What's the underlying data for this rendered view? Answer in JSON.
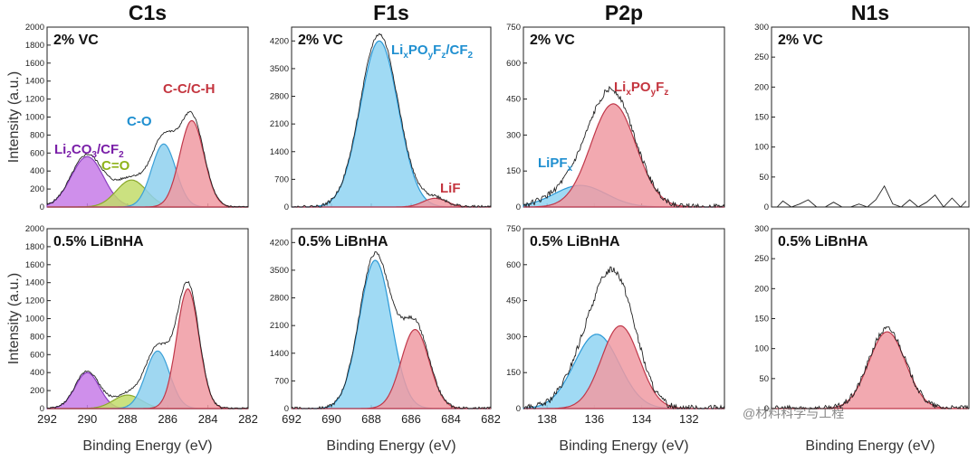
{
  "colors": {
    "carbonate": "#c77be8",
    "carbonate_line": "#8a3fc0",
    "co_double": "#c2dc6a",
    "co_double_line": "#8aa82a",
    "co_single": "#8ed0ef",
    "co_single_line": "#3aa0d8",
    "cc": "#f09aa2",
    "cc_line": "#c0384a",
    "lipoyfz": "#f09aa2",
    "lipf_lif": "#f09aa2",
    "blue": "#8fd3f2",
    "blue_line": "#2a98d6",
    "envelope": "#222222",
    "label_purple": "#7a1fa8",
    "label_green": "#8fb31b",
    "label_blue": "#1f8fd0",
    "label_red": "#c4353f"
  },
  "watermark": "@材料科学与工程",
  "chart_data": [
    {
      "type": "area",
      "panel": "C1s-top",
      "title": "C1s",
      "condition": "2% VC",
      "ylabel": "Intensity (a.u.)",
      "xlabel": "",
      "xlim": [
        292,
        282
      ],
      "xticks": [
        292,
        290,
        288,
        286,
        284,
        282
      ],
      "ylim": [
        0,
        2000
      ],
      "yticks": [
        0,
        200,
        400,
        600,
        800,
        1000,
        1200,
        1400,
        1600,
        1800,
        2000
      ],
      "envelope_noise": 12,
      "peaks": [
        {
          "name": "Li2CO3/CF2",
          "center": 290.0,
          "amp": 560,
          "sigma": 0.8,
          "fill": "carbonate",
          "line": "carbonate_line"
        },
        {
          "name": "C=O",
          "center": 287.8,
          "amp": 300,
          "sigma": 0.75,
          "fill": "co_double",
          "line": "co_double_line"
        },
        {
          "name": "C-O",
          "center": 286.2,
          "amp": 700,
          "sigma": 0.6,
          "fill": "co_single",
          "line": "co_single_line"
        },
        {
          "name": "C-C/C-H",
          "center": 284.8,
          "amp": 960,
          "sigma": 0.6,
          "fill": "cc",
          "line": "cc_line"
        }
      ]
    },
    {
      "type": "area",
      "panel": "F1s-top",
      "title": "F1s",
      "condition": "2% VC",
      "ylabel": "",
      "xlabel": "",
      "xlim": [
        692,
        682
      ],
      "xticks": [
        692,
        690,
        688,
        686,
        684,
        682
      ],
      "ylim": [
        0,
        4550
      ],
      "yticks": [
        0,
        700,
        1400,
        2100,
        2800,
        3500,
        4200
      ],
      "envelope_noise": 40,
      "peaks": [
        {
          "name": "LixPOyFz/CF2",
          "center": 687.6,
          "amp": 4200,
          "sigma": 0.95,
          "fill": "blue",
          "line": "blue_line"
        },
        {
          "name": "LiF",
          "center": 684.8,
          "amp": 220,
          "sigma": 0.6,
          "fill": "lipf_lif",
          "line": "cc_line"
        }
      ]
    },
    {
      "type": "area",
      "panel": "P2p-top",
      "title": "P2p",
      "condition": "2% VC",
      "ylabel": "",
      "xlabel": "",
      "xlim": [
        139,
        130.5
      ],
      "xticks": [
        138,
        136,
        134,
        132
      ],
      "ylim": [
        0,
        750
      ],
      "yticks": [
        0,
        150,
        300,
        450,
        600,
        750
      ],
      "envelope_noise": 12,
      "peaks": [
        {
          "name": "LiPFx",
          "center": 136.6,
          "amp": 90,
          "sigma": 1.1,
          "fill": "blue",
          "line": "blue_line"
        },
        {
          "name": "LixPOyFz",
          "center": 135.2,
          "amp": 430,
          "sigma": 0.95,
          "fill": "lipoyfz",
          "line": "cc_line"
        }
      ]
    },
    {
      "type": "line",
      "panel": "N1s-top",
      "title": "N1s",
      "condition": "2% VC",
      "ylabel": "",
      "xlabel": "",
      "xlim": [
        409,
        395
      ],
      "xticks": [],
      "ylim": [
        0,
        300
      ],
      "yticks": [
        0,
        50,
        100,
        150,
        200,
        250,
        300
      ],
      "noise_points": [
        [
          408.6,
          0
        ],
        [
          408.2,
          10
        ],
        [
          407.6,
          0
        ],
        [
          407.0,
          5
        ],
        [
          406.4,
          12
        ],
        [
          405.8,
          0
        ],
        [
          405.2,
          0
        ],
        [
          404.6,
          8
        ],
        [
          404.0,
          0
        ],
        [
          403.4,
          0
        ],
        [
          402.8,
          5
        ],
        [
          402.2,
          0
        ],
        [
          401.6,
          12
        ],
        [
          401.0,
          35
        ],
        [
          400.4,
          5
        ],
        [
          399.8,
          0
        ],
        [
          399.2,
          12
        ],
        [
          398.6,
          0
        ],
        [
          398.0,
          8
        ],
        [
          397.4,
          20
        ],
        [
          396.8,
          0
        ],
        [
          396.2,
          15
        ],
        [
          395.6,
          0
        ],
        [
          395.2,
          10
        ]
      ],
      "peaks": []
    },
    {
      "type": "area",
      "panel": "C1s-bottom",
      "title": "",
      "condition": "0.5% LiBnHA",
      "ylabel": "Intensity (a.u.)",
      "xlabel": "Binding Energy (eV)",
      "xlim": [
        292,
        282
      ],
      "xticks": [
        292,
        290,
        288,
        286,
        284,
        282
      ],
      "ylim": [
        0,
        2000
      ],
      "yticks": [
        0,
        200,
        400,
        600,
        800,
        1000,
        1200,
        1400,
        1600,
        1800,
        2000
      ],
      "envelope_noise": 12,
      "peaks": [
        {
          "name": "Li2CO3/CF2",
          "center": 290.0,
          "amp": 400,
          "sigma": 0.6,
          "fill": "carbonate",
          "line": "carbonate_line"
        },
        {
          "name": "C=O",
          "center": 288.0,
          "amp": 150,
          "sigma": 0.7,
          "fill": "co_double",
          "line": "co_double_line"
        },
        {
          "name": "C-O",
          "center": 286.5,
          "amp": 640,
          "sigma": 0.6,
          "fill": "co_single",
          "line": "co_single_line"
        },
        {
          "name": "C-C/C-H",
          "center": 285.0,
          "amp": 1330,
          "sigma": 0.55,
          "fill": "cc",
          "line": "cc_line"
        }
      ]
    },
    {
      "type": "area",
      "panel": "F1s-bottom",
      "title": "",
      "condition": "0.5% LiBnHA",
      "ylabel": "",
      "xlabel": "Binding Energy (eV)",
      "xlim": [
        692,
        682
      ],
      "xticks": [
        692,
        690,
        688,
        686,
        684,
        682
      ],
      "ylim": [
        0,
        4550
      ],
      "yticks": [
        0,
        700,
        1400,
        2100,
        2800,
        3500,
        4200
      ],
      "envelope_noise": 40,
      "peaks": [
        {
          "name": "LixPOyFz/CF2",
          "center": 687.8,
          "amp": 3750,
          "sigma": 0.8,
          "fill": "blue",
          "line": "blue_line"
        },
        {
          "name": "LiF",
          "center": 685.8,
          "amp": 2000,
          "sigma": 0.7,
          "fill": "lipf_lif",
          "line": "cc_line"
        }
      ]
    },
    {
      "type": "area",
      "panel": "P2p-bottom",
      "title": "",
      "condition": "0.5% LiBnHA",
      "ylabel": "",
      "xlabel": "Binding Energy (eV)",
      "xlim": [
        139,
        130.5
      ],
      "xticks": [
        138,
        136,
        134,
        132
      ],
      "ylim": [
        0,
        750
      ],
      "yticks": [
        0,
        150,
        300,
        450,
        600,
        750
      ],
      "envelope_noise": 14,
      "peaks": [
        {
          "name": "LiPFx",
          "center": 135.9,
          "amp": 310,
          "sigma": 0.95,
          "fill": "blue",
          "line": "blue_line"
        },
        {
          "name": "LixPOyFz",
          "center": 134.9,
          "amp": 345,
          "sigma": 0.8,
          "fill": "lipoyfz",
          "line": "cc_line"
        }
      ]
    },
    {
      "type": "area",
      "panel": "N1s-bottom",
      "title": "",
      "condition": "0.5% LiBnHA",
      "ylabel": "",
      "xlabel": "Binding Energy (eV)",
      "xlim": [
        409,
        395
      ],
      "xticks": [],
      "ylim": [
        0,
        300
      ],
      "yticks": [
        0,
        50,
        100,
        150,
        200,
        250,
        300
      ],
      "envelope_noise": 5,
      "peaks": [
        {
          "name": "N",
          "center": 400.8,
          "amp": 128,
          "sigma": 1.3,
          "fill": "cc",
          "line": "cc_line"
        }
      ]
    }
  ],
  "peak_labels": [
    {
      "panel": "C1s-top",
      "color": "label_purple",
      "parts": [
        [
          "Li",
          ""
        ],
        [
          "2",
          "sub"
        ],
        [
          "CO",
          ""
        ],
        [
          "3",
          "sub"
        ],
        [
          "/CF",
          ""
        ],
        [
          "2",
          "sub"
        ]
      ],
      "dx": 0,
      "dy": 0
    },
    {
      "panel": "C1s-top",
      "color": "label_green",
      "parts": [
        [
          "C=O",
          ""
        ]
      ]
    },
    {
      "panel": "C1s-top",
      "color": "label_blue",
      "parts": [
        [
          "C-O",
          ""
        ]
      ]
    },
    {
      "panel": "C1s-top",
      "color": "label_red",
      "parts": [
        [
          "C-C/C-H",
          ""
        ]
      ]
    },
    {
      "panel": "F1s-top",
      "color": "label_blue",
      "parts": [
        [
          "Li",
          ""
        ],
        [
          "x",
          "sub"
        ],
        [
          "PO",
          ""
        ],
        [
          "y",
          "sub"
        ],
        [
          "F",
          ""
        ],
        [
          "z",
          "sub"
        ],
        [
          "/CF",
          ""
        ],
        [
          "2",
          "sub"
        ]
      ]
    },
    {
      "panel": "F1s-top",
      "color": "label_red",
      "parts": [
        [
          "LiF",
          ""
        ]
      ]
    },
    {
      "panel": "P2p-top",
      "color": "label_red",
      "parts": [
        [
          "Li",
          ""
        ],
        [
          "x",
          "sub"
        ],
        [
          "PO",
          ""
        ],
        [
          "y",
          "sub"
        ],
        [
          "F",
          ""
        ],
        [
          "z",
          "sub"
        ]
      ]
    },
    {
      "panel": "P2p-top",
      "color": "label_blue",
      "parts": [
        [
          "LiPF",
          ""
        ],
        [
          "x",
          "sub"
        ]
      ]
    }
  ]
}
